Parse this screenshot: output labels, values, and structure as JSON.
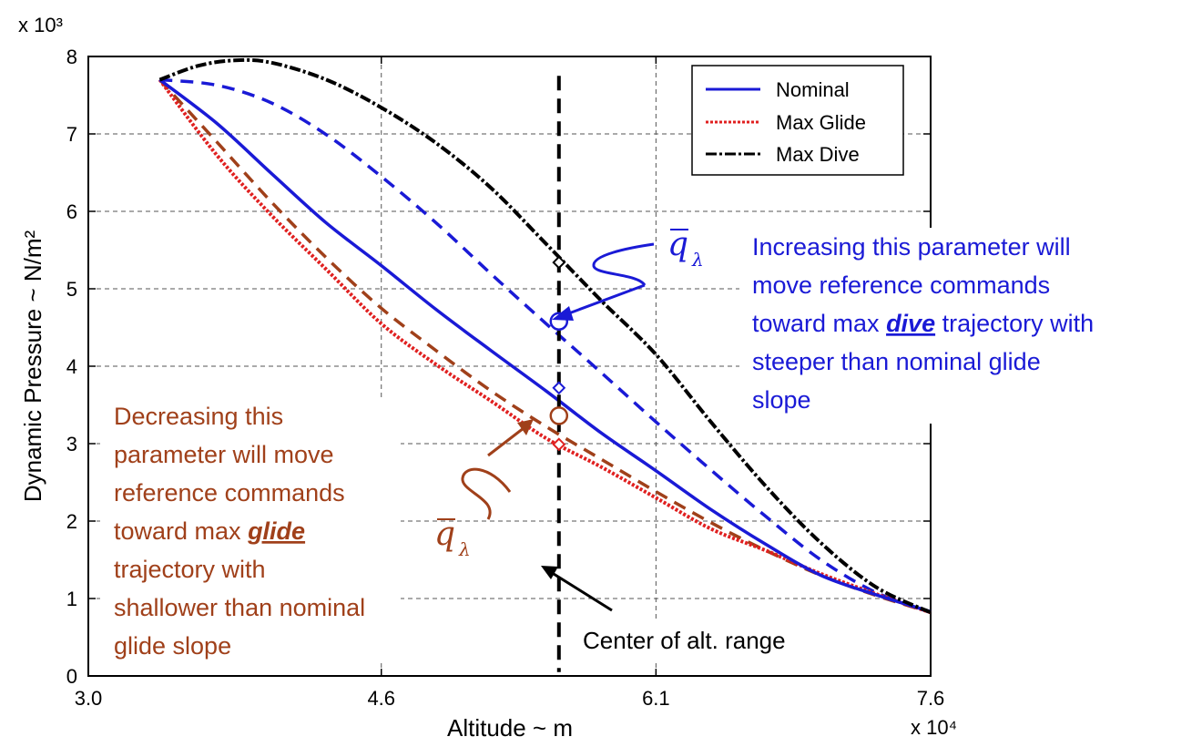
{
  "chart_data": {
    "type": "line",
    "xlabel": "Altitude ~ m",
    "ylabel": "Dynamic Pressure ~ N/m²",
    "x_multiplier": "x 10⁴",
    "y_multiplier": "x 10³",
    "xlim": [
      3.0,
      7.6
    ],
    "ylim": [
      0,
      8
    ],
    "x_ticks": [
      3.0,
      4.6,
      6.1,
      7.6
    ],
    "x_tick_labels": [
      "3.0",
      "4.6",
      "6.1",
      "7.6"
    ],
    "y_ticks": [
      0,
      1,
      2,
      3,
      4,
      5,
      6,
      7,
      8
    ],
    "y_tick_labels": [
      "0",
      "1",
      "2",
      "3",
      "4",
      "5",
      "6",
      "7",
      "8"
    ],
    "grid": true,
    "legend": "top-right",
    "series": [
      {
        "name": "Nominal",
        "color": "#1a1ad6",
        "style": "solid",
        "x": [
          3.39,
          3.7,
          4.0,
          4.3,
          4.6,
          4.9,
          5.2,
          5.5,
          5.8,
          6.1,
          6.4,
          6.7,
          7.0,
          7.3,
          7.6
        ],
        "y": [
          7.7,
          7.14,
          6.49,
          5.85,
          5.3,
          4.73,
          4.2,
          3.68,
          3.14,
          2.65,
          2.15,
          1.7,
          1.3,
          1.05,
          0.83
        ]
      },
      {
        "name": "Max Glide",
        "color": "#e02020",
        "style": "dotted",
        "x": [
          3.39,
          3.7,
          4.0,
          4.3,
          4.6,
          4.9,
          5.2,
          5.5,
          5.8,
          6.1,
          6.4,
          6.7,
          7.0,
          7.3,
          7.6
        ],
        "y": [
          7.7,
          6.73,
          5.95,
          5.25,
          4.55,
          4.02,
          3.55,
          3.07,
          2.7,
          2.3,
          1.9,
          1.62,
          1.32,
          1.06,
          0.82
        ]
      },
      {
        "name": "Max Dive",
        "color": "#000000",
        "style": "dashdot",
        "x": [
          3.39,
          3.6,
          3.8,
          4.0,
          4.3,
          4.6,
          4.9,
          5.2,
          5.5,
          5.8,
          6.1,
          6.4,
          6.7,
          7.0,
          7.3,
          7.6
        ],
        "y": [
          7.7,
          7.88,
          7.95,
          7.92,
          7.7,
          7.34,
          6.88,
          6.3,
          5.58,
          4.85,
          4.15,
          3.28,
          2.45,
          1.72,
          1.15,
          0.82
        ]
      },
      {
        "color": "#1a1ad6",
        "style": "dashed",
        "x": [
          3.39,
          3.7,
          4.0,
          4.3,
          4.6,
          4.9,
          5.2,
          5.5,
          5.8,
          6.1,
          6.4,
          6.7,
          7.0,
          7.3,
          7.6
        ],
        "y": [
          7.7,
          7.63,
          7.4,
          6.99,
          6.45,
          5.85,
          5.19,
          4.55,
          3.92,
          3.28,
          2.66,
          2.06,
          1.5,
          1.08,
          0.82
        ]
      },
      {
        "color": "#a0401a",
        "style": "dashed",
        "x": [
          3.39,
          3.7,
          4.0,
          4.3,
          4.6,
          4.9,
          5.2,
          5.5,
          5.8,
          6.1,
          6.4,
          6.7,
          7.0,
          7.3,
          7.6
        ],
        "y": [
          7.7,
          6.9,
          6.12,
          5.4,
          4.75,
          4.2,
          3.68,
          3.22,
          2.8,
          2.38,
          1.98,
          1.62,
          1.3,
          1.04,
          0.82
        ]
      }
    ],
    "center_line": {
      "x": 5.57,
      "y_range": [
        0.05,
        7.75
      ],
      "color": "#000000"
    },
    "markers": [
      {
        "x": 5.57,
        "y": 5.34,
        "shape": "diamond",
        "color": "#000000"
      },
      {
        "x": 5.57,
        "y": 4.58,
        "shape": "circle",
        "color": "#1a1ad6"
      },
      {
        "x": 5.57,
        "y": 3.72,
        "shape": "diamond",
        "color": "#1a1ad6"
      },
      {
        "x": 5.57,
        "y": 3.36,
        "shape": "circle",
        "color": "#a0401a"
      },
      {
        "x": 5.57,
        "y": 2.99,
        "shape": "diamond",
        "color": "#e02020"
      }
    ],
    "annotations": {
      "increase_lines": [
        "Increasing  this parameter will",
        "move reference commands",
        "toward max ",
        "dive",
        " trajectory with",
        "steeper than nominal glide",
        "slope"
      ],
      "decrease_lines": [
        "Decreasing  this",
        "parameter will move",
        "reference commands",
        "toward max ",
        "glide",
        "trajectory with",
        "shallower than nominal",
        "glide slope"
      ],
      "center_label": "Center of alt. range",
      "q_symbol": "q",
      "q_subscript": "λ"
    }
  }
}
